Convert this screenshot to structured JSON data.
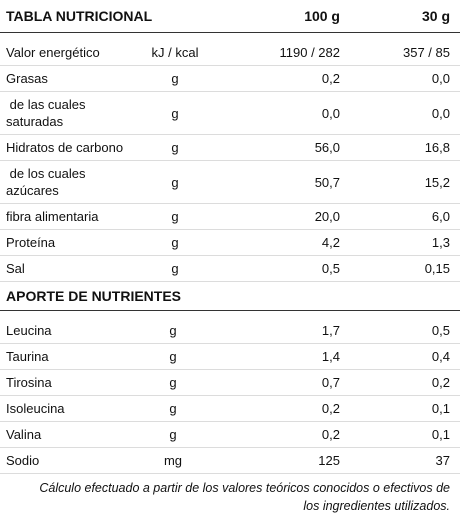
{
  "header": {
    "title": "TABLA NUTRICIONAL",
    "col_100g": "100 g",
    "col_30g": "30 g"
  },
  "rows": [
    {
      "name": "Valor energético",
      "unit": "kJ / kcal",
      "v100": "1190 / 282",
      "v30": "357 / 85"
    },
    {
      "name": "Grasas",
      "unit": "g",
      "v100": "0,2",
      "v30": "0,0"
    },
    {
      "name": " de las cuales saturadas",
      "unit": "g",
      "v100": "0,0",
      "v30": "0,0"
    },
    {
      "name": "Hidratos de carbono",
      "unit": "g",
      "v100": "56,0",
      "v30": "16,8"
    },
    {
      "name": " de los cuales azúcares",
      "unit": "g",
      "v100": "50,7",
      "v30": "15,2"
    },
    {
      "name": "fibra alimentaria",
      "unit": "g",
      "v100": "20,0",
      "v30": "6,0"
    },
    {
      "name": "Proteína",
      "unit": "g",
      "v100": "4,2",
      "v30": "1,3"
    },
    {
      "name": "Sal",
      "unit": "g",
      "v100": "0,5",
      "v30": "0,15"
    }
  ],
  "section": {
    "title": "APORTE DE NUTRIENTES"
  },
  "nutrients": [
    {
      "name": "Leucina",
      "unit": "g",
      "v100": "1,7",
      "v30": "0,5"
    },
    {
      "name": "Taurina",
      "unit": "g",
      "v100": "1,4",
      "v30": "0,4"
    },
    {
      "name": "Tirosina",
      "unit": "g",
      "v100": "0,7",
      "v30": "0,2"
    },
    {
      "name": "Isoleucina",
      "unit": "g",
      "v100": "0,2",
      "v30": "0,1"
    },
    {
      "name": "Valina",
      "unit": "g",
      "v100": "0,2",
      "v30": "0,1"
    },
    {
      "name": "Sodio",
      "unit": "mg",
      "v100": "125",
      "v30": "37"
    }
  ],
  "footnote": "Cálculo efectuado a partir de los valores teóricos conocidos o efectivos de los ingredientes utilizados."
}
